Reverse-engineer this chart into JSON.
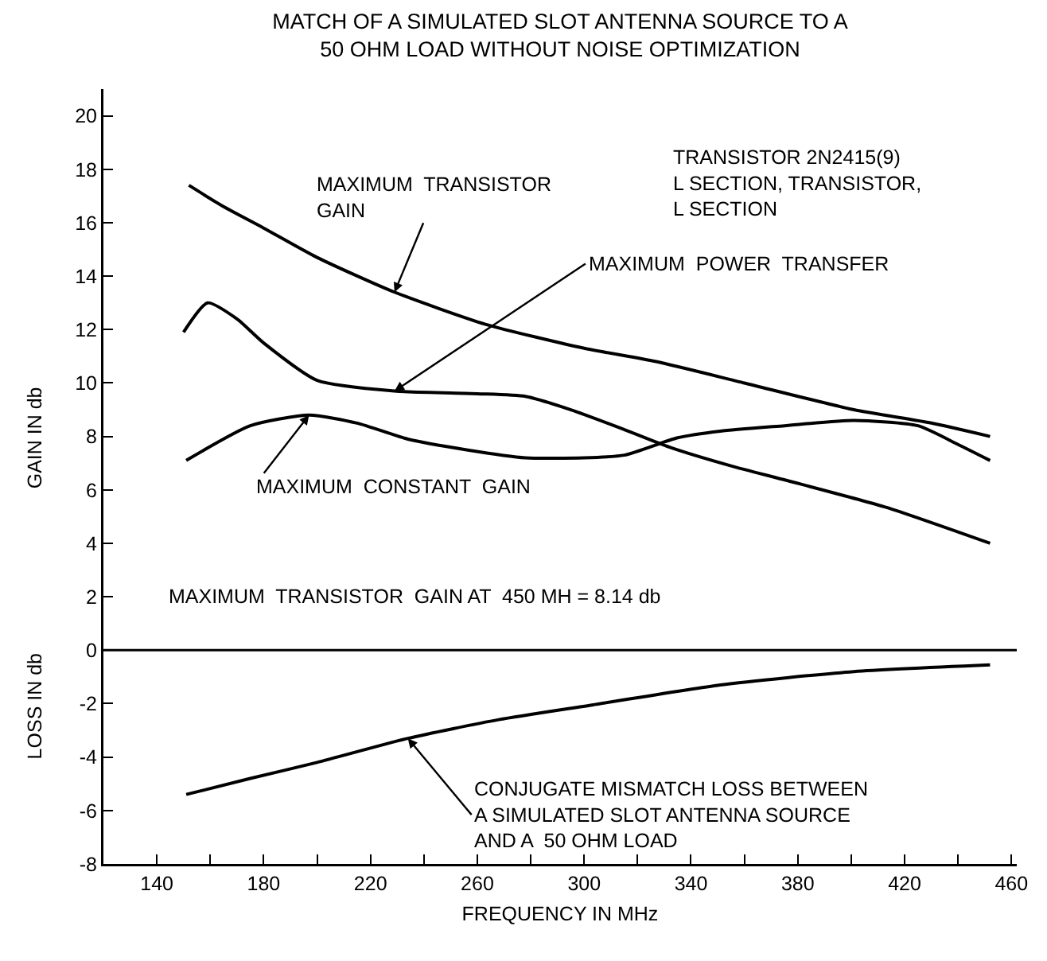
{
  "chart_data": {
    "type": "line",
    "title": "MATCH OF A SIMULATED SLOT ANTENNA SOURCE TO A\n50 OHM LOAD WITHOUT NOISE OPTIMIZATION",
    "xlabel": "FREQUENCY IN MHz",
    "ylabel": "GAIN IN db",
    "annotations": [
      "LOSS IN db",
      "TRANSISTOR 2N2415(9)\nL SECTION, TRANSISTOR,\nL SECTION",
      "MAXIMUM  TRANSISTOR  GAIN AT  450 MH = 8.14 db"
    ],
    "series": [
      {
        "name": "MAXIMUM  TRANSISTOR\nGAIN",
        "color": "#000000",
        "x": [
          152,
          165,
          180,
          200,
          229,
          263,
          300,
          327,
          360,
          401,
          430,
          452
        ],
        "values": [
          17.4,
          16.6,
          15.8,
          14.7,
          13.4,
          12.2,
          11.3,
          10.8,
          10.0,
          9.0,
          8.5,
          8.0
        ]
      },
      {
        "name": "MAXIMUM  POWER  TRANSFER",
        "color": "#000000",
        "x": [
          150,
          159,
          170,
          180,
          200,
          229,
          260,
          278,
          295,
          314,
          332,
          355,
          376,
          413,
          452
        ],
        "values": [
          11.9,
          13.0,
          12.4,
          11.5,
          10.1,
          9.7,
          9.6,
          9.5,
          9.0,
          8.3,
          7.6,
          6.9,
          6.35,
          5.35,
          4.0
        ]
      },
      {
        "name": "MAXIMUM  CONSTANT  GAIN",
        "color": "#000000",
        "x": [
          151,
          175,
          197,
          215,
          234,
          256,
          278,
          300,
          315,
          335,
          351,
          375,
          401,
          425,
          440,
          452
        ],
        "values": [
          7.1,
          8.4,
          8.8,
          8.5,
          7.9,
          7.5,
          7.2,
          7.2,
          7.3,
          7.95,
          8.2,
          8.4,
          8.6,
          8.4,
          7.7,
          7.1
        ]
      },
      {
        "name": "CONJUGATE MISMATCH LOSS BETWEEN\nA SIMULATED SLOT ANTENNA SOURCE\nAND A  50 OHM LOAD",
        "color": "#000000",
        "x": [
          151,
          175,
          200,
          234,
          268,
          303,
          351,
          401,
          452
        ],
        "values": [
          -5.4,
          -4.8,
          -4.2,
          -3.3,
          -2.6,
          -2.05,
          -1.3,
          -0.8,
          -0.55
        ]
      }
    ],
    "xlim": [
      120,
      462
    ],
    "xticks": [
      140,
      {
        "value": 160,
        "label": null
      },
      180,
      {
        "value": 200,
        "label": null
      },
      220,
      {
        "value": 240,
        "label": null
      },
      260,
      {
        "value": 280,
        "label": null
      },
      300,
      {
        "value": 320,
        "label": null
      },
      340,
      {
        "value": 360,
        "label": null
      },
      380,
      {
        "value": 400,
        "label": null
      },
      420,
      {
        "value": 440,
        "label": null
      },
      460
    ],
    "ylim": [
      -8,
      21
    ],
    "yticks": [
      -8,
      -6,
      -4,
      -2,
      0,
      2,
      4,
      6,
      8,
      10,
      12,
      14,
      16,
      18,
      20
    ],
    "ref_lines": [
      {
        "axis": "y",
        "value": 0,
        "color": "#000000"
      }
    ],
    "grid": false,
    "legend": false,
    "marker": "none",
    "line_style": "solid"
  }
}
